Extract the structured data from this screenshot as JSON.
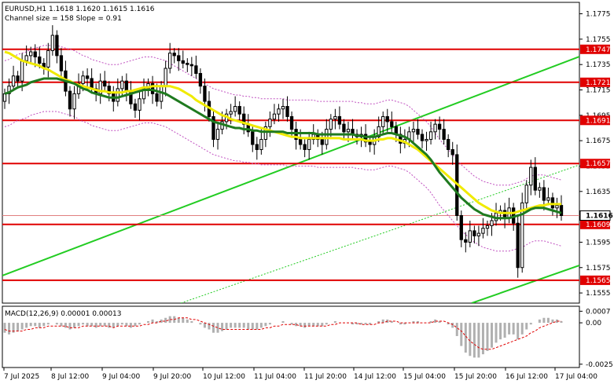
{
  "header": {
    "line1": "EURUSD,H1  1.1618 1.1620 1.1615 1.1616",
    "line2": "Channel size = 158 Slope = 0.91"
  },
  "macd_header": "MACD(12,26,9) 0.00001 0.00013",
  "colors": {
    "bull": "#000000",
    "bear": "#000000",
    "ma_fast": "#1f7a1f",
    "ma_slow": "#f0ea00",
    "level": "#e00000",
    "channel": "#22cc22",
    "channel_dotted": "#22cc22",
    "bands": "#c050c0",
    "macd_hist": "#b0b0b0",
    "macd_signal": "#e00000",
    "price_tag": "#e00000",
    "axis": "#000000"
  },
  "chart_data": [
    {
      "type": "candlestick",
      "symbol": "EURUSD",
      "timeframe": "H1",
      "ylim": [
        1.1547,
        1.1784
      ],
      "y_ticks": [
        "1.1775",
        "1.1755",
        "1.1735",
        "1.1715",
        "1.1695",
        "1.1675",
        "1.1655",
        "1.1635",
        "1.1616",
        "1.1595",
        "1.1575",
        "1.1555"
      ],
      "x_ticks": [
        "7 Jul 2025",
        "8 Jul 12:00",
        "9 Jul 04:00",
        "9 Jul 20:00",
        "10 Jul 12:00",
        "11 Jul 04:00",
        "11 Jul 20:00",
        "14 Jul 12:00",
        "15 Jul 04:00",
        "15 Jul 20:00",
        "16 Jul 12:00",
        "17 Jul 04:00"
      ],
      "levels": [
        {
          "value": 1.1747,
          "label": "1.1747"
        },
        {
          "value": 1.1721,
          "label": "1.1721"
        },
        {
          "value": 1.1691,
          "label": "1.1691"
        },
        {
          "value": 1.1657,
          "label": "1.1657"
        },
        {
          "value": 1.1609,
          "label": "1.1609"
        },
        {
          "value": 1.1565,
          "label": "1.1565"
        }
      ],
      "current_price": 1.1616,
      "current_label": "1.1616",
      "closes": [
        1.1712,
        1.1718,
        1.1726,
        1.1722,
        1.1738,
        1.1742,
        1.1745,
        1.1741,
        1.1736,
        1.1733,
        1.1746,
        1.1758,
        1.1742,
        1.173,
        1.1714,
        1.17,
        1.1712,
        1.172,
        1.1726,
        1.1724,
        1.1716,
        1.1712,
        1.1722,
        1.1718,
        1.1712,
        1.1706,
        1.1716,
        1.1722,
        1.1714,
        1.1704,
        1.1699,
        1.1708,
        1.1716,
        1.172,
        1.1712,
        1.1706,
        1.1718,
        1.1732,
        1.1744,
        1.1742,
        1.1738,
        1.1736,
        1.1735,
        1.1734,
        1.1728,
        1.1718,
        1.1706,
        1.1694,
        1.1676,
        1.1684,
        1.169,
        1.1696,
        1.1698,
        1.1702,
        1.1696,
        1.1688,
        1.1682,
        1.1672,
        1.1668,
        1.1676,
        1.1686,
        1.1692,
        1.1696,
        1.17,
        1.1702,
        1.1694,
        1.1684,
        1.1676,
        1.1672,
        1.1668,
        1.1676,
        1.168,
        1.1676,
        1.1672,
        1.1684,
        1.1692,
        1.1694,
        1.1688,
        1.1682,
        1.1684,
        1.168,
        1.1678,
        1.168,
        1.1674,
        1.1672,
        1.1678,
        1.1686,
        1.1694,
        1.169,
        1.1686,
        1.168,
        1.1673,
        1.1676,
        1.1682,
        1.1684,
        1.168,
        1.1675,
        1.1676,
        1.1682,
        1.1688,
        1.1684,
        1.1676,
        1.1668,
        1.1664,
        1.1616,
        1.1597,
        1.1595,
        1.1604,
        1.16,
        1.1602,
        1.1606,
        1.1608,
        1.1612,
        1.1618,
        1.162,
        1.1614,
        1.1622,
        1.161,
        1.1575,
        1.1626,
        1.164,
        1.1654,
        1.1636,
        1.1638,
        1.1628,
        1.163,
        1.1622,
        1.1624,
        1.1616
      ],
      "ma_fast": [
        1.1745,
        1.1744,
        1.1742,
        1.174,
        1.1738,
        1.1737,
        1.1736,
        1.1735,
        1.1734,
        1.1732,
        1.1731,
        1.1729,
        1.1727,
        1.1725,
        1.1723,
        1.1722,
        1.172,
        1.1719,
        1.1718,
        1.1717,
        1.1716,
        1.1715,
        1.1714,
        1.1714,
        1.1713,
        1.1713,
        1.1713,
        1.1713,
        1.1714,
        1.1714,
        1.1715,
        1.1716,
        1.1717,
        1.1717,
        1.1718,
        1.1718,
        1.1718,
        1.1718,
        1.1718,
        1.1717,
        1.1716,
        1.1714,
        1.1712,
        1.171,
        1.1707,
        1.1705,
        1.1703,
        1.1701,
        1.1699,
        1.1697,
        1.1695,
        1.1694,
        1.1692,
        1.1691,
        1.169,
        1.1689,
        1.1688,
        1.1687,
        1.1686,
        1.1685,
        1.1684,
        1.1683,
        1.1682,
        1.1681,
        1.168,
        1.1679,
        1.1678,
        1.1678,
        1.1677,
        1.1677,
        1.1677,
        1.1677,
        1.1677,
        1.1677,
        1.1677,
        1.1677,
        1.1677,
        1.1677,
        1.1676,
        1.1676,
        1.1676,
        1.1676,
        1.1676,
        1.1675,
        1.1675,
        1.1675,
        1.1676,
        1.1676,
        1.1677,
        1.1677,
        1.1676,
        1.1675,
        1.1674,
        1.1672,
        1.167,
        1.1668,
        1.1665,
        1.1662,
        1.1659,
        1.1656,
        1.1653,
        1.165,
        1.1647,
        1.1644,
        1.1641,
        1.1638,
        1.1635,
        1.1632,
        1.1629,
        1.1626,
        1.1624,
        1.1622,
        1.162,
        1.1619,
        1.1618,
        1.1618,
        1.1618,
        1.1618,
        1.1619,
        1.162,
        1.1621,
        1.1622,
        1.1623,
        1.1624,
        1.1624,
        1.1625,
        1.1625,
        1.1625,
        1.1625
      ],
      "ma_slow": [
        1.1712,
        1.1713,
        1.1715,
        1.1717,
        1.1718,
        1.1719,
        1.1721,
        1.1722,
        1.1723,
        1.1724,
        1.1724,
        1.1724,
        1.1724,
        1.1723,
        1.1722,
        1.1721,
        1.172,
        1.1718,
        1.1716,
        1.1715,
        1.1713,
        1.1712,
        1.1711,
        1.171,
        1.1709,
        1.1709,
        1.1709,
        1.171,
        1.1711,
        1.1712,
        1.1713,
        1.1714,
        1.1715,
        1.1715,
        1.1715,
        1.1714,
        1.1713,
        1.1712,
        1.171,
        1.1708,
        1.1706,
        1.1704,
        1.1702,
        1.17,
        1.1698,
        1.1696,
        1.1694,
        1.1692,
        1.169,
        1.1689,
        1.1688,
        1.1687,
        1.1686,
        1.1685,
        1.1685,
        1.1684,
        1.1684,
        1.1683,
        1.1683,
        1.1682,
        1.1682,
        1.1682,
        1.1682,
        1.1682,
        1.1682,
        1.1681,
        1.1681,
        1.1681,
        1.1681,
        1.1681,
        1.1681,
        1.1681,
        1.168,
        1.168,
        1.168,
        1.168,
        1.168,
        1.168,
        1.168,
        1.168,
        1.168,
        1.1679,
        1.1679,
        1.1678,
        1.1678,
        1.1678,
        1.1679,
        1.168,
        1.1681,
        1.1681,
        1.168,
        1.1679,
        1.1678,
        1.1676,
        1.1673,
        1.167,
        1.1667,
        1.1664,
        1.166,
        1.1655,
        1.165,
        1.1646,
        1.1642,
        1.1638,
        1.1634,
        1.163,
        1.1627,
        1.1624,
        1.1621,
        1.1619,
        1.1617,
        1.1616,
        1.1615,
        1.1614,
        1.1614,
        1.1614,
        1.1614,
        1.1615,
        1.1616,
        1.1617,
        1.1619,
        1.1621,
        1.1622,
        1.1622,
        1.1622,
        1.1621,
        1.162,
        1.1619,
        1.1618
      ]
    },
    {
      "type": "histogram",
      "name": "MACD(12,26,9)",
      "ylim": [
        -0.0027,
        0.001
      ],
      "y_ticks": [
        "0.0007",
        "0.00",
        "-0.0025"
      ],
      "values": [
        -0.0006,
        -0.0007,
        -0.0006,
        -0.0005,
        -0.0004,
        -0.0003,
        -0.0002,
        -0.0002,
        -0.0003,
        -0.0002,
        -0.0001,
        0.0,
        -0.0001,
        -0.0002,
        -0.0003,
        -0.0004,
        -0.0003,
        -0.0002,
        -0.0001,
        -0.0002,
        -0.0002,
        -0.0003,
        -0.0002,
        -0.0002,
        -0.0003,
        -0.0003,
        -0.0002,
        -0.0001,
        -0.0002,
        -0.0003,
        -0.0002,
        -0.0001,
        0.0,
        0.0001,
        0.0002,
        0.0001,
        0.0002,
        0.0003,
        0.0004,
        0.0004,
        0.0003,
        0.0003,
        0.0002,
        0.0001,
        0.0,
        -0.0001,
        -0.0003,
        -0.0004,
        -0.0006,
        -0.0006,
        -0.0005,
        -0.0004,
        -0.0003,
        -0.0003,
        -0.0003,
        -0.0003,
        -0.0004,
        -0.0004,
        -0.0004,
        -0.0003,
        -0.0002,
        -0.0001,
        0.0,
        0.0,
        0.0001,
        0.0,
        -0.0001,
        -0.0002,
        -0.0002,
        -0.0003,
        -0.0002,
        -0.0002,
        -0.0002,
        -0.0002,
        -0.0001,
        0.0,
        0.0001,
        0.0,
        0.0,
        0.0,
        -0.0001,
        -0.0001,
        -0.0001,
        -0.0001,
        -0.0001,
        0.0,
        0.0001,
        0.0002,
        0.0002,
        0.0001,
        0.0,
        -0.0001,
        -0.0001,
        0.0,
        0.0001,
        0.0001,
        0.0,
        0.0,
        0.0001,
        0.0002,
        0.0001,
        0.0,
        -0.0001,
        -0.0003,
        -0.0008,
        -0.0014,
        -0.0018,
        -0.002,
        -0.0021,
        -0.0021,
        -0.0019,
        -0.0017,
        -0.0015,
        -0.0012,
        -0.001,
        -0.0009,
        -0.0007,
        -0.0007,
        -0.001,
        -0.0007,
        -0.0004,
        -0.0001,
        0.0,
        0.0002,
        0.0003,
        0.0003,
        0.0002,
        0.0002,
        0.0001
      ],
      "signal": [
        -0.0004,
        -0.0005,
        -0.0005,
        -0.0005,
        -0.0005,
        -0.0004,
        -0.0004,
        -0.0003,
        -0.0003,
        -0.0003,
        -0.0002,
        -0.0002,
        -0.0002,
        -0.0002,
        -0.0002,
        -0.0003,
        -0.0003,
        -0.0003,
        -0.0002,
        -0.0002,
        -0.0002,
        -0.0002,
        -0.0002,
        -0.0002,
        -0.0002,
        -0.0003,
        -0.0002,
        -0.0002,
        -0.0002,
        -0.0002,
        -0.0002,
        -0.0002,
        -0.0001,
        -0.0001,
        0.0,
        0.0,
        0.0001,
        0.0001,
        0.0002,
        0.0002,
        0.0003,
        0.0003,
        0.0003,
        0.0002,
        0.0002,
        0.0001,
        0.0,
        -0.0001,
        -0.0002,
        -0.0003,
        -0.0004,
        -0.0004,
        -0.0004,
        -0.0004,
        -0.0004,
        -0.0004,
        -0.0004,
        -0.0004,
        -0.0004,
        -0.0004,
        -0.0003,
        -0.0003,
        -0.0002,
        -0.0002,
        -0.0001,
        -0.0001,
        -0.0001,
        -0.0001,
        -0.0002,
        -0.0002,
        -0.0002,
        -0.0002,
        -0.0002,
        -0.0002,
        -0.0002,
        -0.0001,
        -0.0001,
        0.0,
        0.0,
        0.0,
        0.0,
        0.0,
        -0.0001,
        -0.0001,
        -0.0001,
        -0.0001,
        0.0,
        0.0,
        0.0001,
        0.0001,
        0.0001,
        0.0,
        0.0,
        0.0,
        0.0,
        0.0,
        0.0,
        0.0,
        0.0,
        0.0001,
        0.0001,
        0.0001,
        0.0,
        -0.0001,
        -0.0003,
        -0.0005,
        -0.0008,
        -0.0011,
        -0.0013,
        -0.0015,
        -0.0016,
        -0.0016,
        -0.0016,
        -0.0015,
        -0.0014,
        -0.0013,
        -0.0012,
        -0.0011,
        -0.001,
        -0.0009,
        -0.0008,
        -0.0006,
        -0.0005,
        -0.0003,
        -0.0002,
        -0.0001,
        0.0,
        0.0001,
        0.0001
      ]
    }
  ]
}
